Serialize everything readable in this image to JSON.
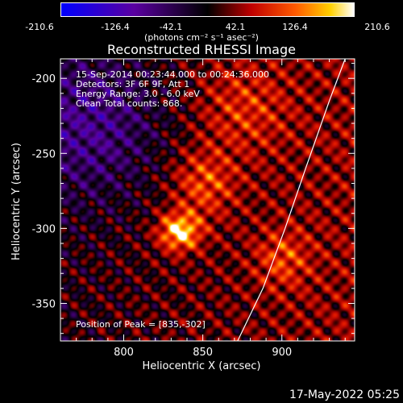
{
  "colorbar": {
    "ticks": [
      "-210.6",
      "-126.4",
      "-42.1",
      "42.1",
      "126.4",
      "210.6"
    ],
    "units": "(photons cm⁻² s⁻¹ asec⁻²)"
  },
  "chart_data": {
    "type": "heatmap",
    "title": "Reconstructed RHESSI Image",
    "xlabel": "Heliocentric X (arcsec)",
    "ylabel": "Heliocentric Y (arcsec)",
    "xlim": [
      760,
      946
    ],
    "ylim": [
      -375,
      -187
    ],
    "xticks": [
      "800",
      "850",
      "900"
    ],
    "yticks": [
      "-200",
      "-250",
      "-300",
      "-350"
    ],
    "zlim": [
      -210.6,
      210.6
    ],
    "colormap": "blue-black-red-yellow-white",
    "peak": [
      835,
      -302
    ],
    "limb_curve": [
      [
        940,
        -187
      ],
      [
        930,
        -215
      ],
      [
        915,
        -260
      ],
      [
        902,
        -300
      ],
      [
        888,
        -340
      ],
      [
        872,
        -375
      ]
    ]
  },
  "annotations": {
    "line1": "15-Sep-2014 00:23:44.000 to 00:24:36.000",
    "line2": "Detectors: 3F 6F 9F, Att 1",
    "line3": "Energy Range: 3.0 - 6.0 keV",
    "line4": "Clean    Total counts: 868.",
    "peak": "Position of Peak = [835,-302]"
  },
  "timestamp": "17-May-2022 05:25"
}
